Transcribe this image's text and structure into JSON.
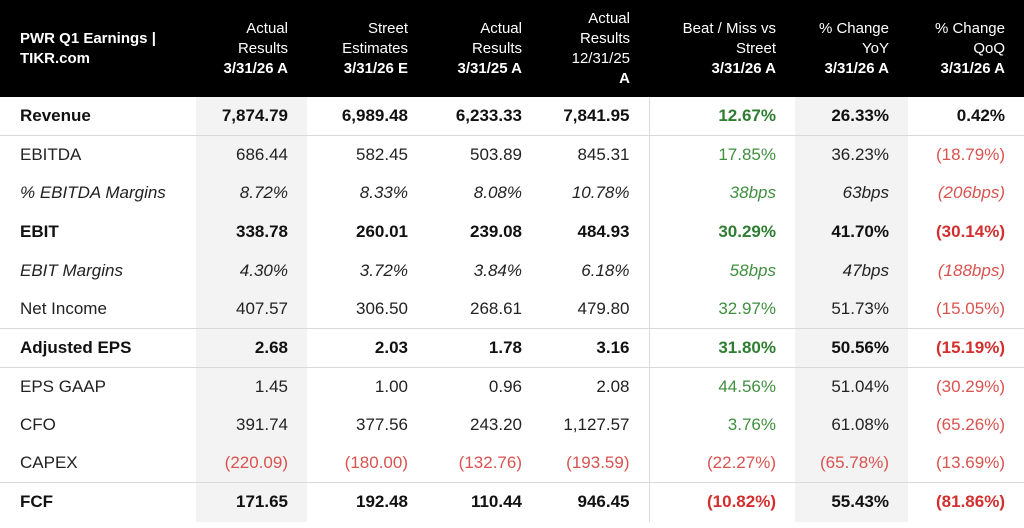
{
  "header": {
    "title_line1": "PWR Q1 Earnings |",
    "title_line2": "TIKR.com",
    "columns": [
      {
        "lines": [
          "Actual",
          "Results"
        ],
        "date": "3/31/26 A"
      },
      {
        "lines": [
          "Street",
          "Estimates"
        ],
        "date": "3/31/26 E"
      },
      {
        "lines": [
          "Actual",
          "Results"
        ],
        "date": "3/31/25 A"
      },
      {
        "lines": [
          "Actual",
          "Results",
          "12/31/25"
        ],
        "date": "A"
      },
      {
        "lines": [
          "Beat / Miss vs",
          "Street"
        ],
        "date": "3/31/26 A"
      },
      {
        "lines": [
          "% Change",
          "YoY"
        ],
        "date": "3/31/26 A"
      },
      {
        "lines": [
          "% Change",
          "QoQ"
        ],
        "date": "3/31/26 A"
      }
    ]
  },
  "colors": {
    "header_bg": "#000000",
    "positive": "#3f8f3f",
    "negative": "#d9534f",
    "shade": "#f3f3f3"
  },
  "rows": [
    {
      "label": "Revenue",
      "values": [
        "7,874.79",
        "6,989.48",
        "6,233.33",
        "7,841.95",
        "12.67%",
        "26.33%",
        "0.42%"
      ]
    },
    {
      "label": "EBITDA",
      "values": [
        "686.44",
        "582.45",
        "503.89",
        "845.31",
        "17.85%",
        "36.23%",
        "(18.79%)"
      ]
    },
    {
      "label": "% EBITDA Margins",
      "values": [
        "8.72%",
        "8.33%",
        "8.08%",
        "10.78%",
        "38bps",
        "63bps",
        "(206bps)"
      ]
    },
    {
      "label": "EBIT",
      "values": [
        "338.78",
        "260.01",
        "239.08",
        "484.93",
        "30.29%",
        "41.70%",
        "(30.14%)"
      ]
    },
    {
      "label": "EBIT Margins",
      "values": [
        "4.30%",
        "3.72%",
        "3.84%",
        "6.18%",
        "58bps",
        "47bps",
        "(188bps)"
      ]
    },
    {
      "label": "Net Income",
      "values": [
        "407.57",
        "306.50",
        "268.61",
        "479.80",
        "32.97%",
        "51.73%",
        "(15.05%)"
      ]
    },
    {
      "label": "Adjusted EPS",
      "values": [
        "2.68",
        "2.03",
        "1.78",
        "3.16",
        "31.80%",
        "50.56%",
        "(15.19%)"
      ]
    },
    {
      "label": "EPS GAAP",
      "values": [
        "1.45",
        "1.00",
        "0.96",
        "2.08",
        "44.56%",
        "51.04%",
        "(30.29%)"
      ]
    },
    {
      "label": "CFO",
      "values": [
        "391.74",
        "377.56",
        "243.20",
        "1,127.57",
        "3.76%",
        "61.08%",
        "(65.26%)"
      ]
    },
    {
      "label": "CAPEX",
      "values": [
        "(220.09)",
        "(180.00)",
        "(132.76)",
        "(193.59)",
        "(22.27%)",
        "(65.78%)",
        "(13.69%)"
      ]
    },
    {
      "label": "FCF",
      "values": [
        "171.65",
        "192.48",
        "110.44",
        "946.45",
        "(10.82%)",
        "55.43%",
        "(81.86%)"
      ]
    }
  ]
}
